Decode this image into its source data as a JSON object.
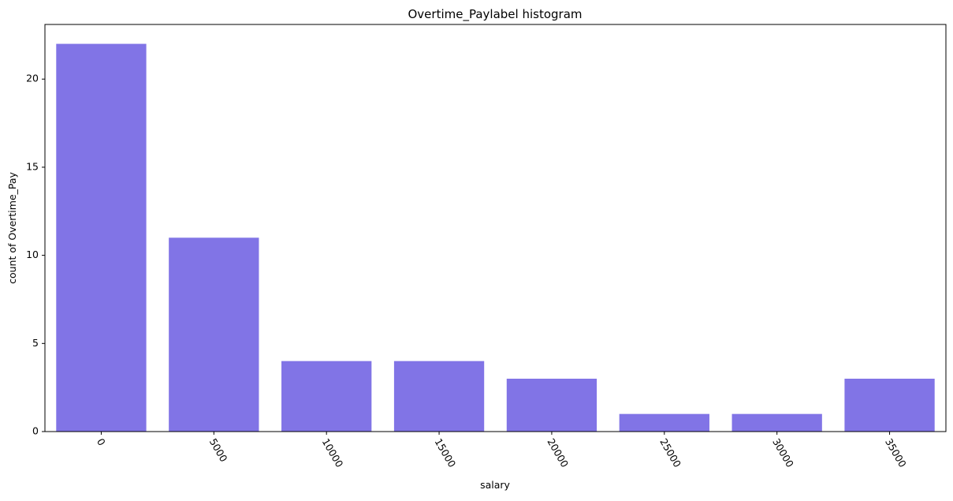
{
  "chart_data": {
    "type": "bar",
    "title": "Overtime_Paylabel histogram",
    "xlabel": "salary",
    "ylabel": "count of Overtime_Pay",
    "categories": [
      "0",
      "5000",
      "10000",
      "15000",
      "20000",
      "25000",
      "30000",
      "35000"
    ],
    "values": [
      22,
      11,
      4,
      4,
      3,
      1,
      1,
      3
    ],
    "ylim": [
      0,
      23.1
    ],
    "yticks": [
      0,
      5,
      10,
      15,
      20
    ],
    "bar_color": "#8174e6",
    "x_tick_rotation": "-60deg",
    "grid": false,
    "legend": "none"
  }
}
